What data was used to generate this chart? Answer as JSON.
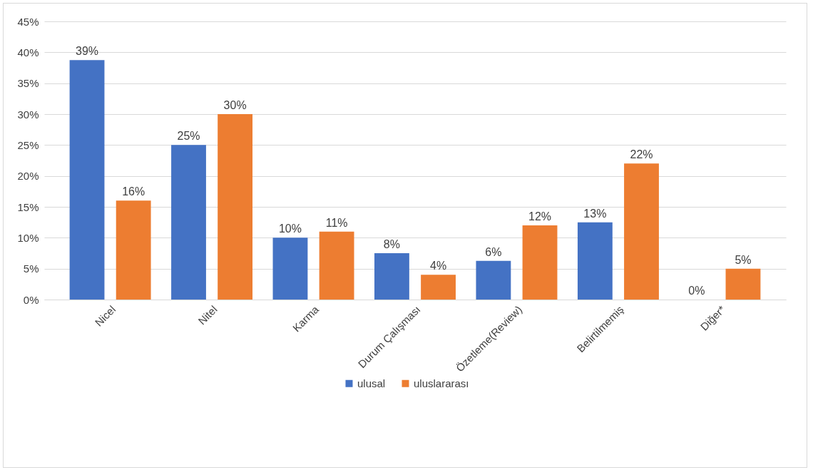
{
  "chart_data": {
    "type": "bar",
    "categories": [
      "Nicel",
      "Nitel",
      "Karma",
      "Durum Çalışması",
      "Özetleme(Review)",
      "Belirtilmemiş",
      "Diğer*"
    ],
    "series": [
      {
        "name": "ulusal",
        "color": "#4472c4",
        "values": [
          38.75,
          25,
          10,
          7.5,
          6.25,
          12.5,
          0
        ],
        "value_labels": [
          "39%",
          "25%",
          "10%",
          "8%",
          "6%",
          "13%",
          "0%"
        ]
      },
      {
        "name": "uluslararası",
        "color": "#ed7d31",
        "values": [
          16,
          30,
          11,
          4,
          12,
          22,
          5
        ],
        "value_labels": [
          "16%",
          "30%",
          "11%",
          "4%",
          "12%",
          "22%",
          "5%"
        ]
      }
    ],
    "ylim": [
      0,
      45
    ],
    "yticks": [
      {
        "value": 0,
        "label": "0%"
      },
      {
        "value": 5,
        "label": "5%"
      },
      {
        "value": 10,
        "label": "10%"
      },
      {
        "value": 15,
        "label": "15%"
      },
      {
        "value": 20,
        "label": "20%"
      },
      {
        "value": 25,
        "label": "25%"
      },
      {
        "value": 30,
        "label": "30%"
      },
      {
        "value": 35,
        "label": "35%"
      },
      {
        "value": 40,
        "label": "40%"
      },
      {
        "value": 45,
        "label": "45%"
      }
    ],
    "grid": "y",
    "legend": "bottom"
  }
}
